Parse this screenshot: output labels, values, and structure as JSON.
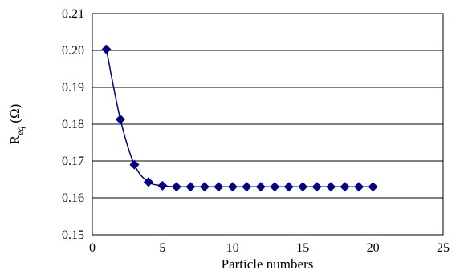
{
  "chart_data": {
    "type": "scatter",
    "title": "",
    "xlabel": "Particle numbers",
    "ylabel": {
      "main": "R",
      "sub": "eq",
      "unit": "(Ω)"
    },
    "xlim": [
      0,
      25
    ],
    "ylim": [
      0.15,
      0.21
    ],
    "xticks": [
      0,
      5,
      10,
      15,
      20,
      25
    ],
    "xtick_labels": [
      "0",
      "5",
      "10",
      "15",
      "20",
      "25"
    ],
    "yticks": [
      0.15,
      0.16,
      0.17,
      0.18,
      0.19,
      0.2,
      0.21
    ],
    "ytick_labels": [
      "0.15",
      "0.16",
      "0.17",
      "0.18",
      "0.19",
      "0.20",
      "0.21"
    ],
    "grid": "horizontal",
    "legend": "none",
    "series": [
      {
        "marker": "diamond",
        "line": "smooth",
        "color": "#000080",
        "x": [
          1,
          2,
          3,
          4,
          5,
          6,
          7,
          8,
          9,
          10,
          11,
          12,
          13,
          14,
          15,
          16,
          17,
          18,
          19,
          20
        ],
        "y": [
          0.2003,
          0.1813,
          0.169,
          0.1643,
          0.1633,
          0.163,
          0.163,
          0.163,
          0.163,
          0.163,
          0.163,
          0.163,
          0.163,
          0.163,
          0.163,
          0.163,
          0.163,
          0.163,
          0.163,
          0.163
        ]
      }
    ]
  }
}
